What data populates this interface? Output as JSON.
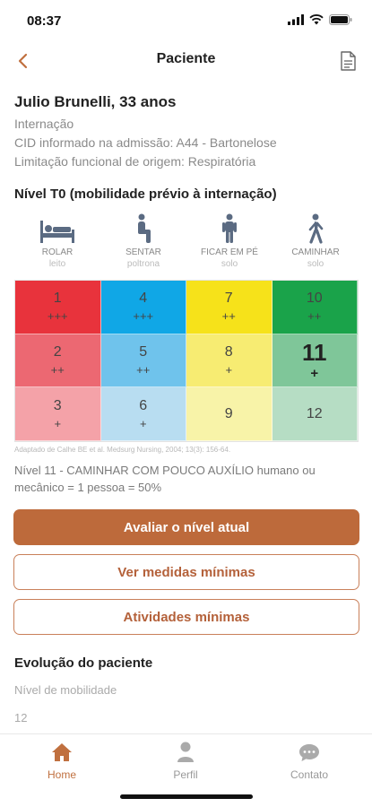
{
  "status": {
    "time": "08:37"
  },
  "header": {
    "title": "Paciente"
  },
  "patient": {
    "name": "Julio Brunelli, 33 anos",
    "type": "Internação",
    "cid": "CID informado na admissão: A44 - Bartonelose",
    "limitation": "Limitação funcional de origem: Respiratória"
  },
  "level": {
    "title": "Nível T0 (mobilidade prévio à internação)",
    "positions": [
      {
        "name": "ROLAR",
        "sub": "leito",
        "icon": "bed-icon"
      },
      {
        "name": "SENTAR",
        "sub": "poltrona",
        "icon": "sitting-person-icon"
      },
      {
        "name": "FICAR EM PÉ",
        "sub": "solo",
        "icon": "standing-person-icon"
      },
      {
        "name": "CAMINHAR",
        "sub": "solo",
        "icon": "walking-person-icon"
      }
    ],
    "grid": [
      {
        "num": "1",
        "plus": "+++",
        "color": "#e8333c"
      },
      {
        "num": "4",
        "plus": "+++",
        "color": "#10a7e6"
      },
      {
        "num": "7",
        "plus": "++",
        "color": "#f6e21a"
      },
      {
        "num": "10",
        "plus": "++",
        "color": "#1aa34a"
      },
      {
        "num": "2",
        "plus": "++",
        "color": "#ec6872"
      },
      {
        "num": "5",
        "plus": "++",
        "color": "#6fc3ec"
      },
      {
        "num": "8",
        "plus": "+",
        "color": "#f7ec72"
      },
      {
        "num": "11",
        "plus": "+",
        "color": "#7fc699"
      },
      {
        "num": "3",
        "plus": "+",
        "color": "#f4a2a8"
      },
      {
        "num": "6",
        "plus": "+",
        "color": "#b8ddf1"
      },
      {
        "num": "9",
        "plus": "",
        "color": "#f8f3a8"
      },
      {
        "num": "12",
        "plus": "",
        "color": "#b6ddc4"
      }
    ],
    "active_level": "11",
    "citation": "Adaptado de Calhe BE et al. Medsurg Nursing, 2004; 13(3): 156-64.",
    "description": "Nível 11 - CAMINHAR COM POUCO AUXÍLIO humano ou mecânico = 1 pessoa = 50%"
  },
  "actions": {
    "evaluate": "Avaliar o nível atual",
    "measures": "Ver medidas mínimas",
    "activities": "Atividades mínimas"
  },
  "evolution": {
    "title": "Evolução do paciente",
    "label": "Nível de mobilidade",
    "value": "12"
  },
  "tabs": {
    "home": "Home",
    "profile": "Perfil",
    "contact": "Contato"
  },
  "colors": {
    "accent": "#bd6a3b",
    "accent_text": "#b4613a"
  }
}
